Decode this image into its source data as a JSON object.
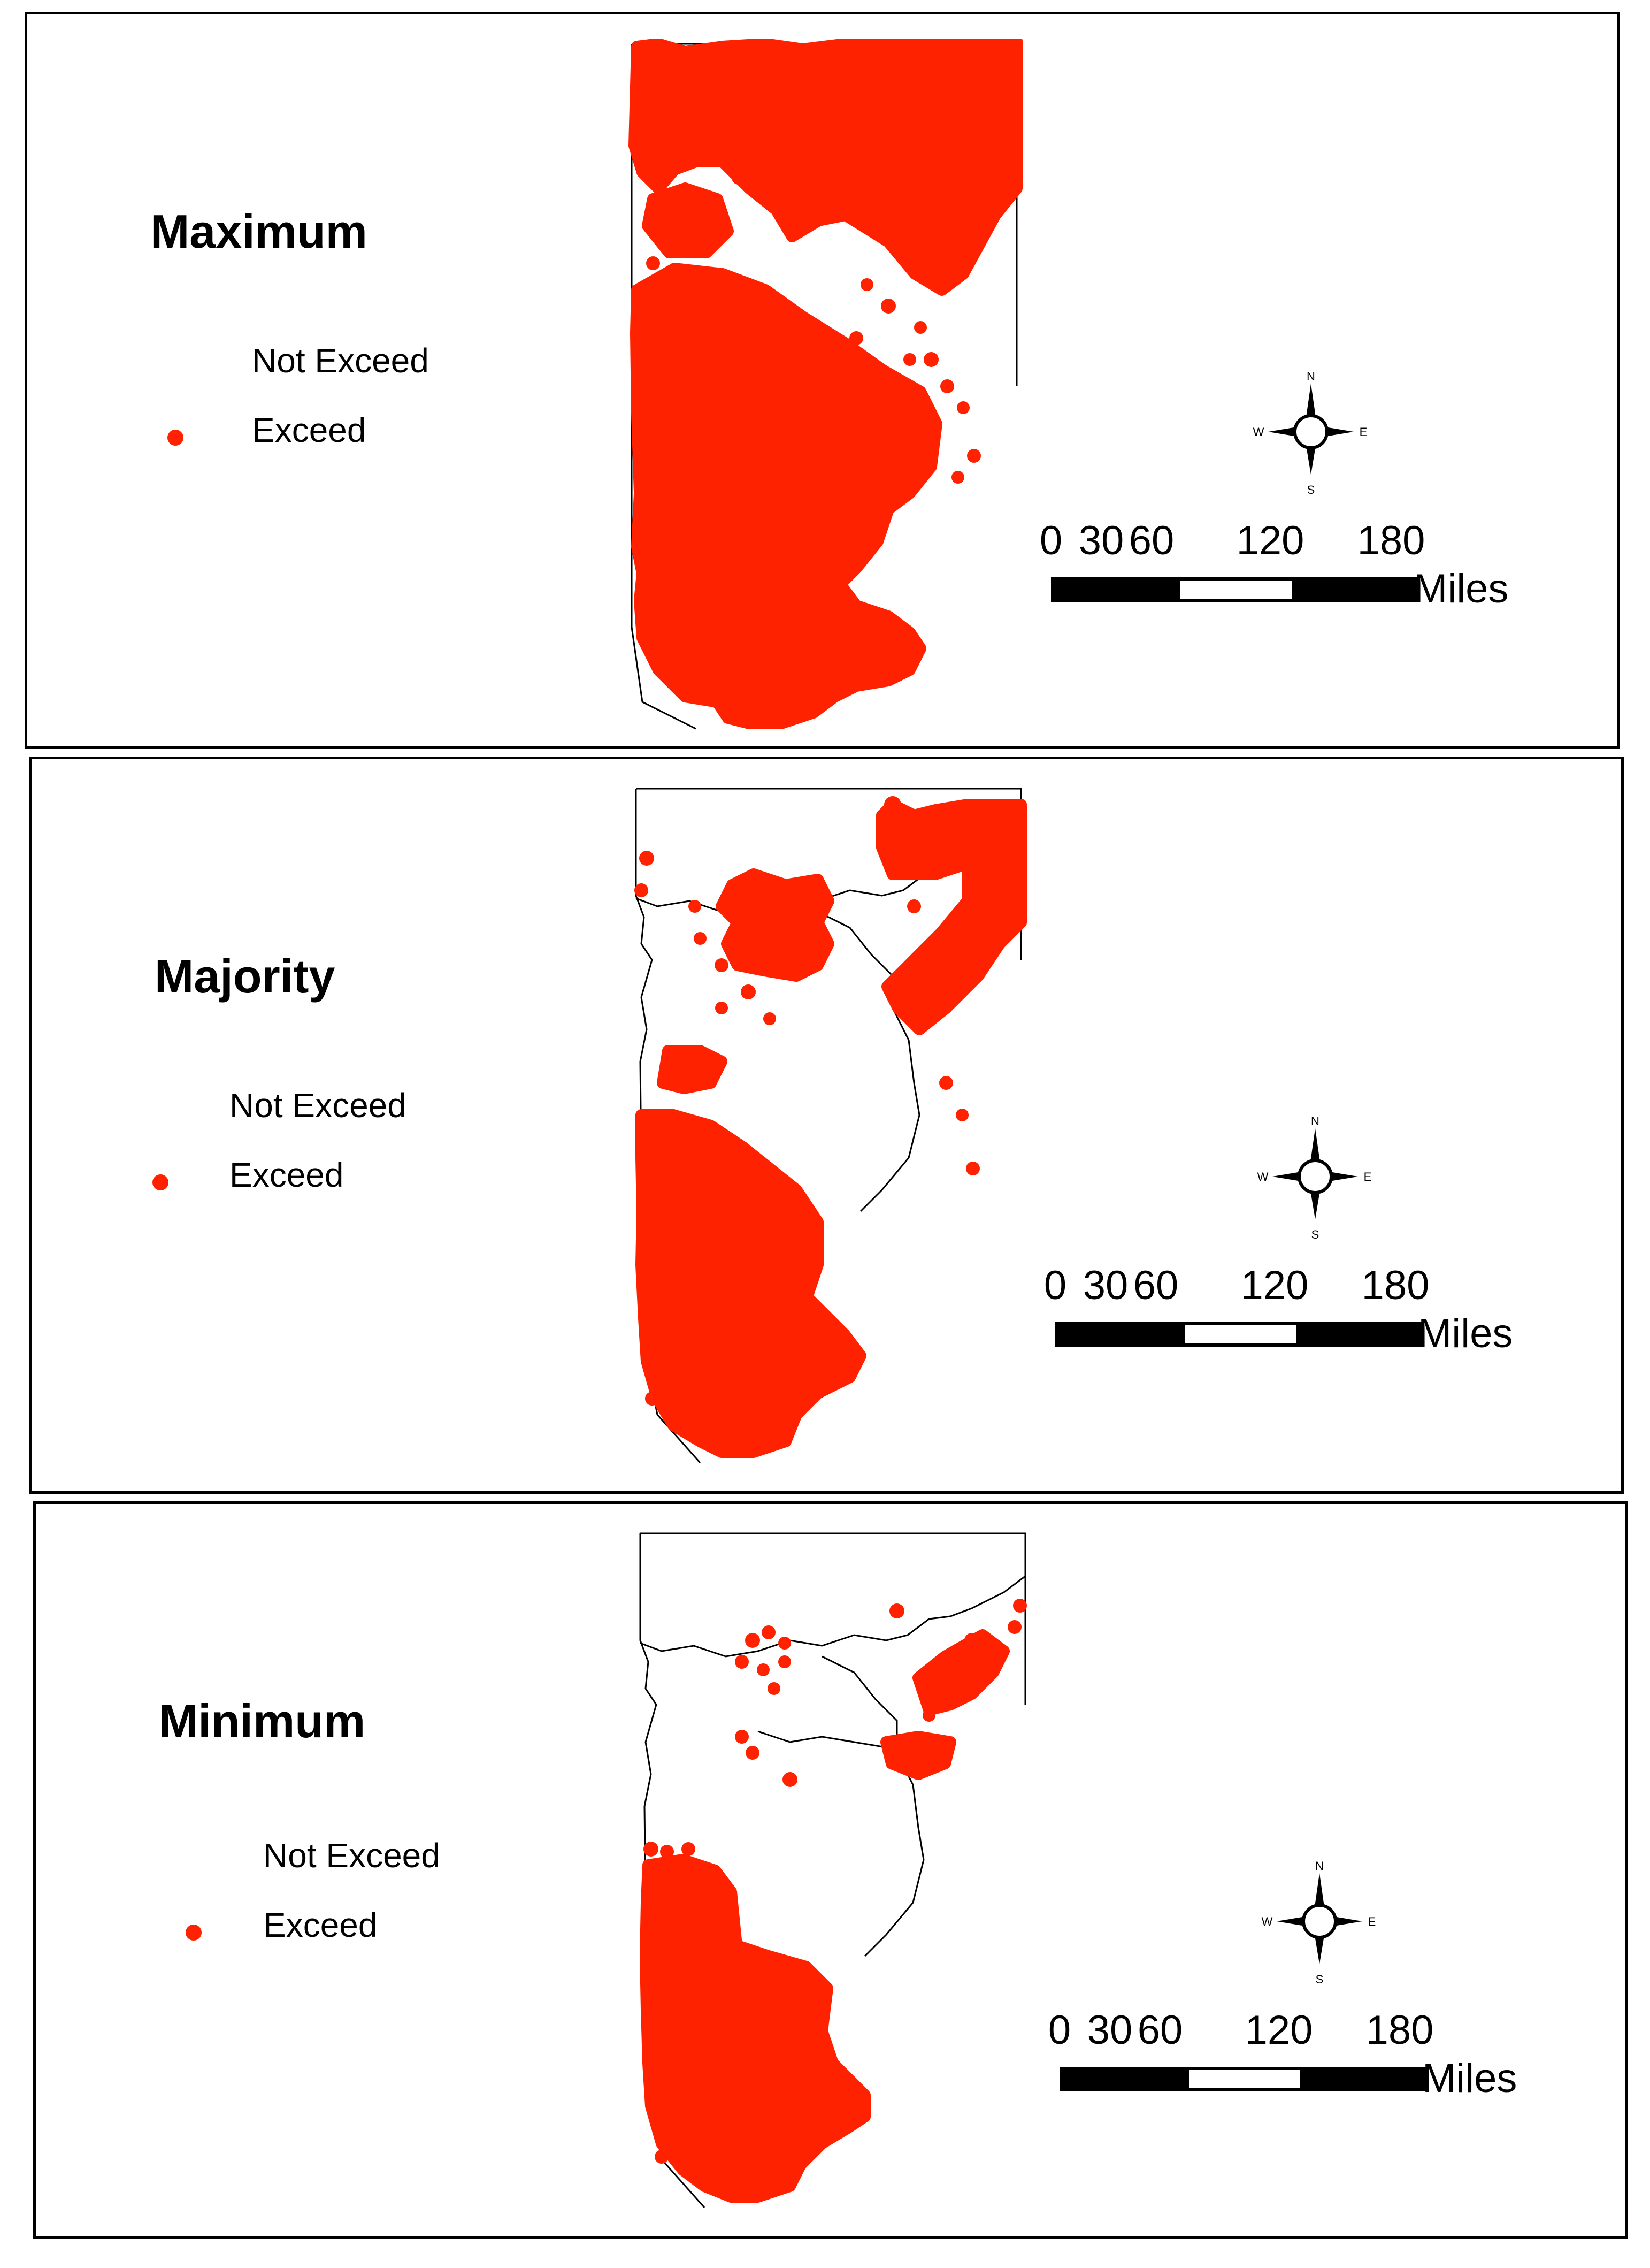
{
  "colors": {
    "exceed": "#ff2200",
    "border": "#000000"
  },
  "legend": {
    "not_exceed": "Not Exceed",
    "exceed": "Exceed"
  },
  "compass": {
    "n": "N",
    "s": "S",
    "e": "E",
    "w": "W"
  },
  "scale": {
    "ticks": [
      "0",
      "30",
      "60",
      "120",
      "180"
    ],
    "units": "Miles"
  },
  "panels": [
    {
      "title": "Maximum"
    },
    {
      "title": "Majority"
    },
    {
      "title": "Minimum"
    }
  ]
}
